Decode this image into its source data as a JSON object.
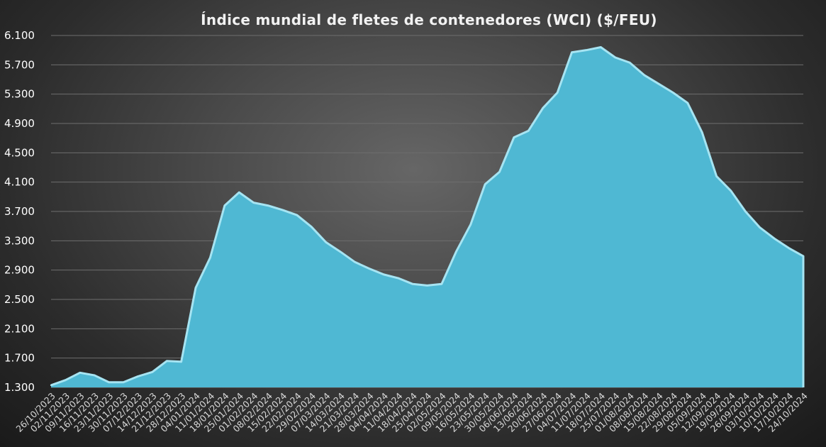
{
  "chart_data": {
    "type": "area",
    "title": "Índice mundial de fletes de contenedores (WCI) ($/FEU)",
    "xlabel": "",
    "ylabel": "",
    "ylim": [
      1300,
      6100
    ],
    "yticks": [
      1300,
      1700,
      2100,
      2500,
      2900,
      3300,
      3700,
      4100,
      4500,
      4900,
      5300,
      5700,
      6100
    ],
    "ytick_labels": [
      "1.300",
      "1.700",
      "2.100",
      "2.500",
      "2.900",
      "3.300",
      "3.700",
      "4.100",
      "4.500",
      "4.900",
      "5.300",
      "5.700",
      "6.100"
    ],
    "grid": true,
    "legend": "none",
    "colors": {
      "fill": "#4fb8d3",
      "edge": "#a6e4f2",
      "grid": "#6e6e6e"
    },
    "categories": [
      "26/10/2023",
      "02/11/2023",
      "09/11/2023",
      "16/11/2023",
      "23/11/2023",
      "30/11/2023",
      "07/12/2023",
      "14/12/2023",
      "21/12/2023",
      "28/12/2023",
      "04/01/2024",
      "11/01/2024",
      "18/01/2024",
      "25/01/2024",
      "01/02/2024",
      "08/02/2024",
      "15/02/2024",
      "22/02/2024",
      "29/02/2024",
      "07/03/2024",
      "14/03/2024",
      "21/03/2024",
      "28/03/2024",
      "04/04/2024",
      "11/04/2024",
      "18/04/2024",
      "25/04/2024",
      "02/05/2024",
      "09/05/2024",
      "16/05/2024",
      "23/05/2024",
      "30/05/2024",
      "06/06/2024",
      "13/06/2024",
      "20/06/2024",
      "27/06/2024",
      "04/07/2024",
      "11/07/2024",
      "18/07/2024",
      "25/07/2024",
      "01/08/2024",
      "08/08/2024",
      "15/08/2024",
      "22/08/2024",
      "29/08/2024",
      "05/09/2024",
      "12/09/2024",
      "19/09/2024",
      "26/09/2024",
      "03/10/2024",
      "10/10/2024",
      "17/10/2024",
      "24/10/2024"
    ],
    "values": [
      1330,
      1400,
      1500,
      1465,
      1370,
      1370,
      1450,
      1510,
      1660,
      1650,
      2660,
      3070,
      3780,
      3960,
      3820,
      3780,
      3720,
      3650,
      3490,
      3280,
      3150,
      3010,
      2920,
      2840,
      2790,
      2710,
      2690,
      2710,
      3150,
      3520,
      4070,
      4240,
      4710,
      4800,
      5110,
      5320,
      5870,
      5900,
      5940,
      5800,
      5730,
      5560,
      5440,
      5320,
      5180,
      4780,
      4180,
      3980,
      3700,
      3480,
      3330,
      3200,
      3090
    ]
  }
}
